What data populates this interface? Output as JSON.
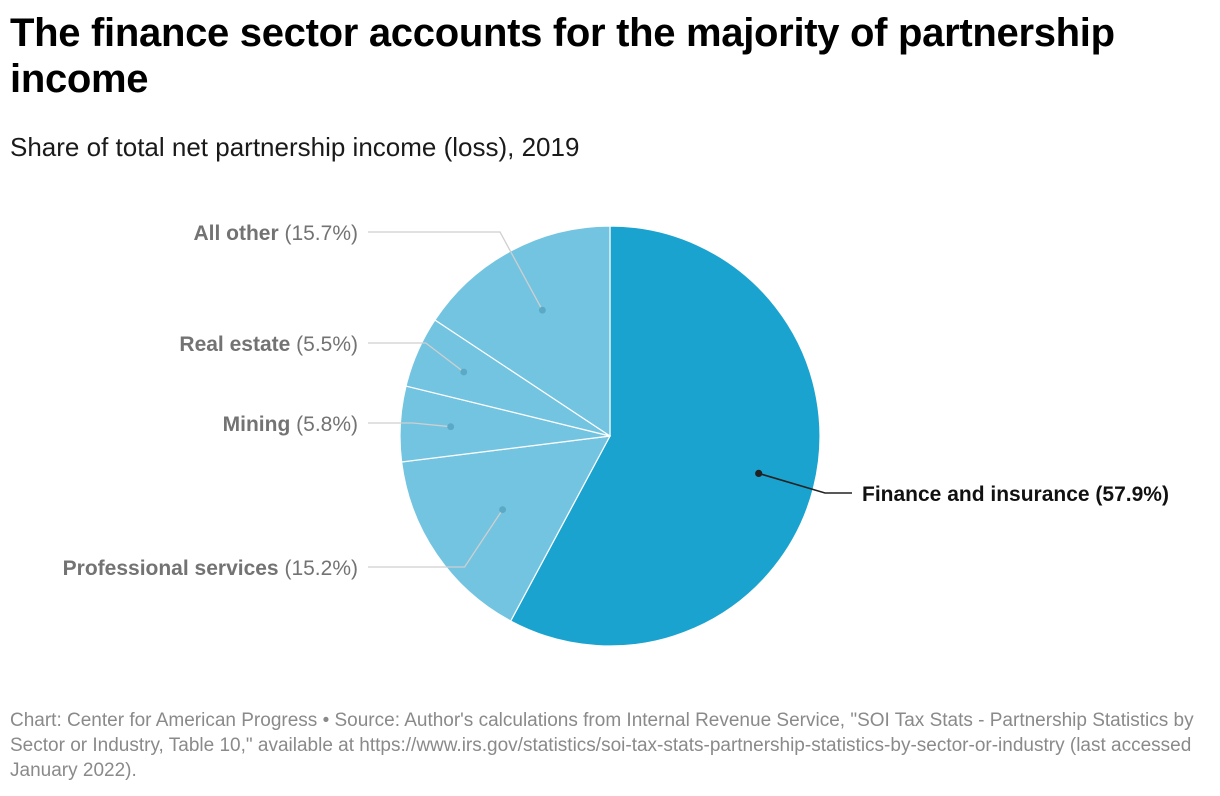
{
  "title": "The finance sector accounts for the majority of partnership income",
  "subtitle": "Share of total net partnership income (loss), 2019",
  "footer": "Chart: Center for American Progress • Source: Author's calculations from Internal Revenue Service, \"SOI Tax Stats - Partnership Statistics by Sector or Industry, Table 10,\" available at https://www.irs.gov/statistics/soi-tax-stats-partnership-statistics-by-sector-or-industry (last accessed January 2022).",
  "colors": {
    "highlight": "#1aa3cf",
    "other": "#73c4e0",
    "label_highlight": "#111111",
    "label_other": "#737373",
    "leader_other": "#cfcfcf",
    "leader_highlight": "#222222"
  },
  "chart_data": {
    "type": "pie",
    "slices": [
      {
        "name": "Finance and insurance",
        "value": 57.9,
        "label": "(57.9%)",
        "highlight": true
      },
      {
        "name": "Professional services",
        "value": 15.2,
        "label": "(15.2%)",
        "highlight": false
      },
      {
        "name": "Mining",
        "value": 5.8,
        "label": "(5.8%)",
        "highlight": false
      },
      {
        "name": "Real estate",
        "value": 5.5,
        "label": "(5.5%)",
        "highlight": false
      },
      {
        "name": "All other",
        "value": 15.7,
        "label": "(15.7%)",
        "highlight": false
      }
    ]
  }
}
